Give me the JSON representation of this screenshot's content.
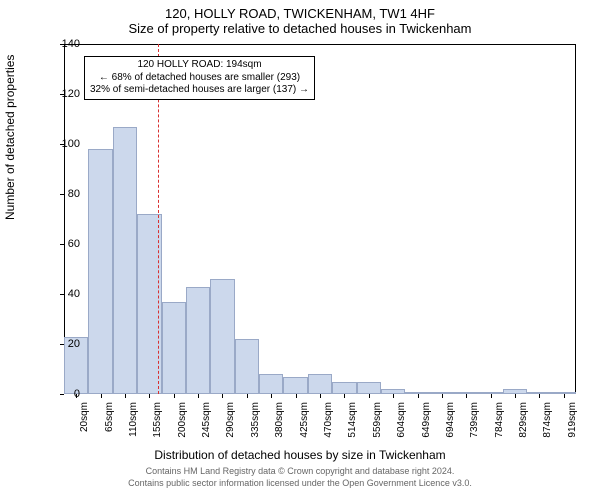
{
  "title_line1": "120, HOLLY ROAD, TWICKENHAM, TW1 4HF",
  "title_line2": "Size of property relative to detached houses in Twickenham",
  "chart": {
    "type": "histogram",
    "ylabel": "Number of detached properties",
    "xlabel": "Distribution of detached houses by size in Twickenham",
    "ylim": [
      0,
      140
    ],
    "yticks": [
      0,
      20,
      40,
      60,
      80,
      100,
      120,
      140
    ],
    "xticks": [
      "20sqm",
      "65sqm",
      "110sqm",
      "155sqm",
      "200sqm",
      "245sqm",
      "290sqm",
      "335sqm",
      "380sqm",
      "425sqm",
      "470sqm",
      "514sqm",
      "559sqm",
      "604sqm",
      "649sqm",
      "694sqm",
      "739sqm",
      "784sqm",
      "829sqm",
      "874sqm",
      "919sqm"
    ],
    "bar_fill": "#ccd8ec",
    "bar_stroke": "#9aa9c7",
    "background": "#ffffff",
    "values": [
      23,
      98,
      107,
      72,
      37,
      43,
      46,
      22,
      8,
      7,
      8,
      5,
      5,
      2,
      0,
      0,
      0,
      1,
      2,
      0,
      0
    ],
    "marker_color": "#d83030",
    "marker_x_index": 4
  },
  "annotation": {
    "line1": "120 HOLLY ROAD: 194sqm",
    "line2": "← 68% of detached houses are smaller (293)",
    "line3": "32% of semi-detached houses are larger (137) →"
  },
  "footer1": "Contains HM Land Registry data © Crown copyright and database right 2024.",
  "footer2": "Contains public sector information licensed under the Open Government Licence v3.0."
}
